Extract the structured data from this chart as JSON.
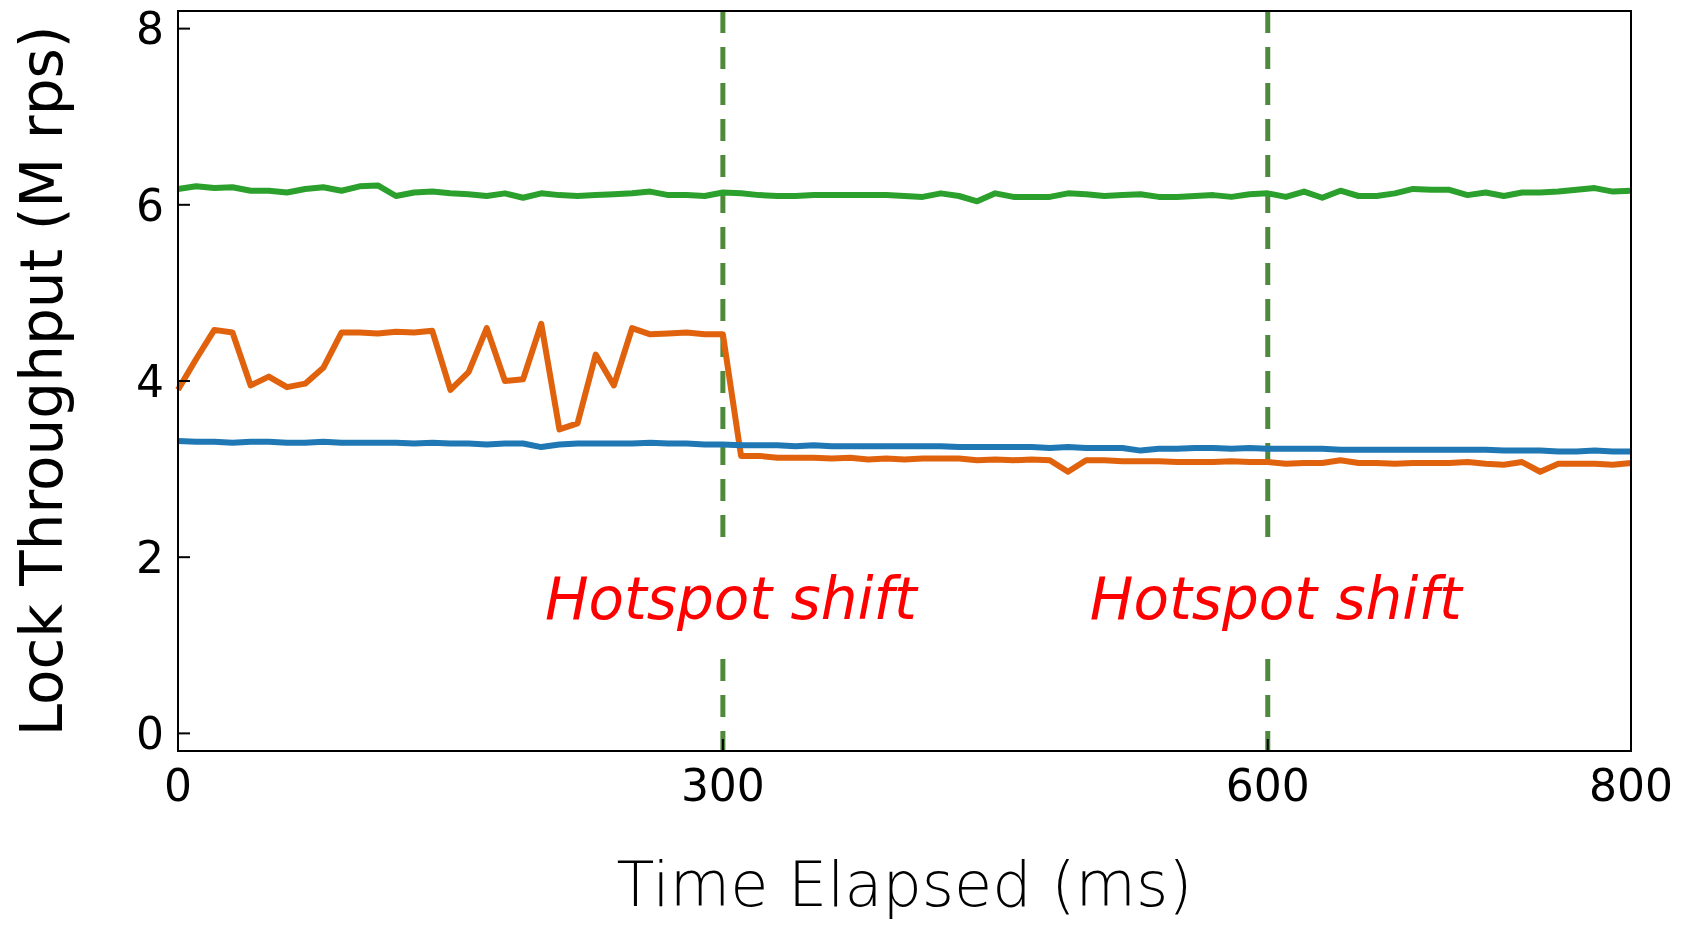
{
  "chart_data": {
    "type": "line",
    "xlabel": "Time Elapsed (ms)",
    "ylabel": "Lock Throughput (M rps)",
    "x": [
      0,
      10,
      20,
      30,
      40,
      50,
      60,
      70,
      80,
      90,
      100,
      110,
      120,
      130,
      140,
      150,
      160,
      170,
      180,
      190,
      200,
      210,
      220,
      230,
      240,
      250,
      260,
      270,
      280,
      290,
      300,
      310,
      320,
      330,
      340,
      350,
      360,
      370,
      380,
      390,
      400,
      410,
      420,
      430,
      440,
      450,
      460,
      470,
      480,
      490,
      500,
      510,
      520,
      530,
      540,
      550,
      560,
      570,
      580,
      590,
      600,
      610,
      620,
      630,
      640,
      650,
      660,
      670,
      680,
      690,
      700,
      710,
      720,
      730,
      740,
      750,
      760,
      770,
      780,
      790,
      800
    ],
    "series": [
      {
        "color": "#2ca02c",
        "values": [
          6.18,
          6.21,
          6.19,
          6.2,
          6.16,
          6.16,
          6.14,
          6.18,
          6.2,
          6.16,
          6.21,
          6.22,
          6.1,
          6.14,
          6.15,
          6.13,
          6.12,
          6.1,
          6.13,
          6.08,
          6.13,
          6.11,
          6.1,
          6.11,
          6.12,
          6.13,
          6.15,
          6.11,
          6.11,
          6.1,
          6.14,
          6.13,
          6.11,
          6.1,
          6.1,
          6.11,
          6.11,
          6.11,
          6.11,
          6.11,
          6.1,
          6.09,
          6.13,
          6.1,
          6.04,
          6.13,
          6.09,
          6.09,
          6.09,
          6.13,
          6.12,
          6.1,
          6.11,
          6.12,
          6.09,
          6.09,
          6.1,
          6.11,
          6.09,
          6.12,
          6.13,
          6.09,
          6.15,
          6.08,
          6.16,
          6.1,
          6.1,
          6.13,
          6.18,
          6.17,
          6.17,
          6.11,
          6.14,
          6.1,
          6.14,
          6.14,
          6.15,
          6.17,
          6.19,
          6.15,
          6.16
        ]
      },
      {
        "color": "#e0620d",
        "values": [
          3.9,
          4.25,
          4.58,
          4.55,
          3.95,
          4.05,
          3.93,
          3.97,
          4.15,
          4.55,
          4.55,
          4.54,
          4.56,
          4.55,
          4.57,
          3.9,
          4.1,
          4.6,
          4.0,
          4.02,
          4.65,
          3.45,
          3.52,
          4.3,
          3.95,
          4.6,
          4.53,
          4.54,
          4.55,
          4.53,
          4.53,
          3.15,
          3.15,
          3.13,
          3.13,
          3.13,
          3.12,
          3.13,
          3.11,
          3.12,
          3.11,
          3.12,
          3.12,
          3.12,
          3.1,
          3.11,
          3.1,
          3.11,
          3.1,
          2.97,
          3.1,
          3.1,
          3.09,
          3.09,
          3.09,
          3.08,
          3.08,
          3.08,
          3.09,
          3.08,
          3.08,
          3.06,
          3.07,
          3.07,
          3.1,
          3.07,
          3.07,
          3.06,
          3.07,
          3.07,
          3.07,
          3.08,
          3.06,
          3.05,
          3.08,
          2.97,
          3.06,
          3.06,
          3.06,
          3.05,
          3.07
        ]
      },
      {
        "color": "#1f77b4",
        "values": [
          3.32,
          3.31,
          3.31,
          3.3,
          3.31,
          3.31,
          3.3,
          3.3,
          3.31,
          3.3,
          3.3,
          3.3,
          3.3,
          3.29,
          3.3,
          3.29,
          3.29,
          3.28,
          3.29,
          3.29,
          3.25,
          3.28,
          3.29,
          3.29,
          3.29,
          3.29,
          3.3,
          3.29,
          3.29,
          3.28,
          3.28,
          3.27,
          3.27,
          3.27,
          3.26,
          3.27,
          3.26,
          3.26,
          3.26,
          3.26,
          3.26,
          3.26,
          3.26,
          3.25,
          3.25,
          3.25,
          3.25,
          3.25,
          3.24,
          3.25,
          3.24,
          3.24,
          3.24,
          3.21,
          3.23,
          3.23,
          3.24,
          3.24,
          3.23,
          3.24,
          3.23,
          3.23,
          3.23,
          3.23,
          3.22,
          3.22,
          3.22,
          3.22,
          3.22,
          3.22,
          3.22,
          3.22,
          3.22,
          3.21,
          3.21,
          3.21,
          3.2,
          3.2,
          3.21,
          3.2,
          3.2
        ]
      }
    ],
    "xlim": [
      0,
      800
    ],
    "xticks": [
      0,
      300,
      600,
      800
    ],
    "ylim": [
      -0.2,
      8.2
    ],
    "yticks": [
      0,
      2,
      4,
      6,
      8
    ],
    "grid": false,
    "line_style": "solid",
    "ref_lines": [
      {
        "axis": "x",
        "value": 300,
        "label": "Hotspot shift",
        "color": "#4f8a3c",
        "line_style": "dashed"
      },
      {
        "axis": "x",
        "value": 600,
        "label": "Hotspot shift",
        "color": "#4f8a3c",
        "line_style": "dashed"
      }
    ]
  }
}
